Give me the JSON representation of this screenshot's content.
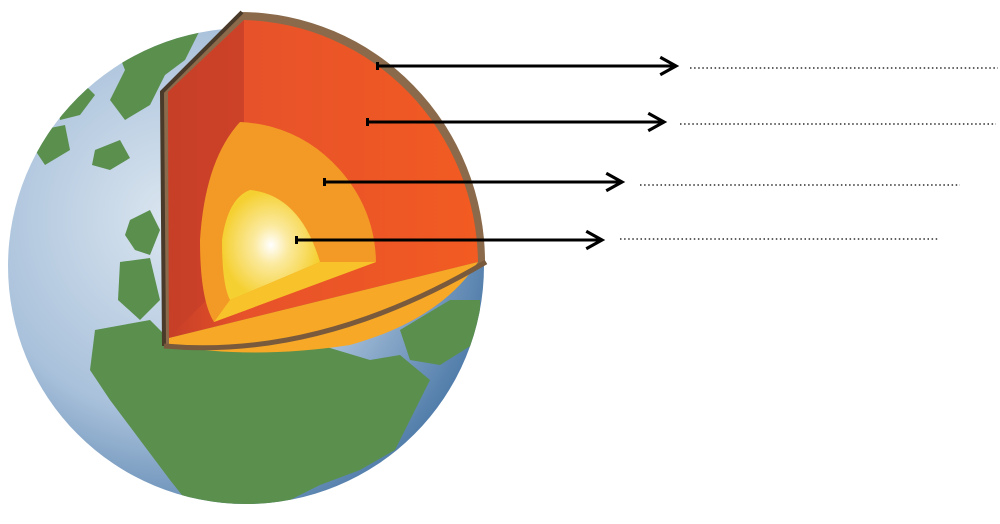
{
  "diagram": {
    "colors": {
      "ocean": "#9fb8d6",
      "land": "#5a8f4e",
      "crust": "#7a5a3c",
      "upper_mantle": "#c9402a",
      "lower_mantle": "#ef5a24",
      "outer_core": "#f39a26",
      "inner_core": "#f7d62e",
      "arrow": "#000000",
      "answer_line": "#000000"
    },
    "labels": [
      {
        "layer": "crust",
        "answer": ""
      },
      {
        "layer": "mantle",
        "answer": ""
      },
      {
        "layer": "outer-core",
        "answer": ""
      },
      {
        "layer": "inner-core",
        "answer": ""
      }
    ]
  }
}
